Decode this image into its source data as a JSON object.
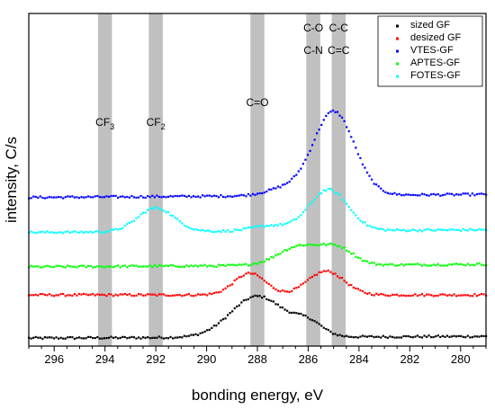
{
  "chart_data": {
    "type": "scatter",
    "xlabel": "bonding energy, eV",
    "ylabel": "intensity, C/s",
    "xlim": [
      297,
      279
    ],
    "x_reversed": true,
    "y_tick_labels": false,
    "xticks": [
      296,
      294,
      292,
      290,
      288,
      286,
      284,
      282,
      280
    ],
    "legend_position": "top-right",
    "bands": [
      {
        "center": 294.0,
        "width": 0.55,
        "label": "CF",
        "sub": "3"
      },
      {
        "center": 292.0,
        "width": 0.55,
        "label": "CF",
        "sub": "2"
      },
      {
        "center": 288.0,
        "width": 0.55,
        "label": "C=O",
        "sub": ""
      },
      {
        "center": 285.8,
        "width": 0.55,
        "label": "C-O",
        "sub": "",
        "label2": "C-N"
      },
      {
        "center": 284.8,
        "width": 0.55,
        "label": "C-C",
        "sub": "",
        "label2": "C=C"
      }
    ],
    "series": [
      {
        "name": "sized GF",
        "color": "#000000",
        "offset": 0.0,
        "peaks": [
          [
            0,
            288.0,
            0.95,
            2.2
          ],
          [
            0,
            286.0,
            0.3,
            1.2
          ]
        ],
        "bg_low": 0.02,
        "bg_high": 0.06
      },
      {
        "name": "desized GF",
        "color": "#ff0000",
        "offset": 1.0,
        "peaks": [
          [
            0,
            288.3,
            0.5,
            1.3
          ],
          [
            0,
            285.3,
            0.55,
            1.5
          ]
        ],
        "bg_low": 0.02,
        "bg_high": 0.02
      },
      {
        "name": "VTES-GF",
        "color": "#0000ff",
        "offset": 3.3,
        "peaks": [
          [
            0,
            285.0,
            1.95,
            1.7
          ],
          [
            0,
            287.0,
            0.15,
            1.5
          ]
        ],
        "bg_low": -0.02,
        "bg_high": 0.05
      },
      {
        "name": "APTES-GF",
        "color": "#00ff00",
        "offset": 1.65,
        "peaks": [
          [
            0,
            286.3,
            0.45,
            1.8
          ],
          [
            0,
            284.8,
            0.35,
            1.3
          ]
        ],
        "bg_low": 0.02,
        "bg_high": 0.08
      },
      {
        "name": "FOTES-GF",
        "color": "#00ffff",
        "offset": 2.45,
        "peaks": [
          [
            0,
            292.0,
            0.55,
            1.5
          ],
          [
            0,
            285.2,
            0.95,
            1.6
          ],
          [
            0,
            287.5,
            0.12,
            1.5
          ]
        ],
        "bg_low": 0.02,
        "bg_high": 0.08
      }
    ]
  }
}
